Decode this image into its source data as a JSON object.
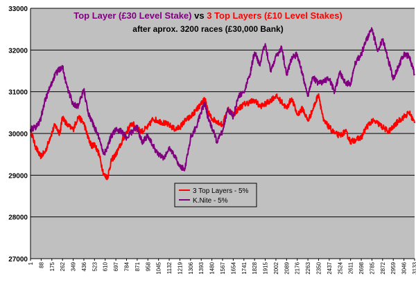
{
  "chart_data": {
    "type": "line",
    "title_parts": [
      {
        "text": "Top Layer (£30 Level Stake)",
        "color": "#800080"
      },
      {
        "text": " vs ",
        "color": "#000000"
      },
      {
        "text": "3 Top Layers (£10 Level Stakes)",
        "color": "#ff0000"
      }
    ],
    "subtitle": "after aprox. 3200 races  (£30,000 Bank)",
    "xlabel": "",
    "ylabel": "",
    "ylim": [
      27000,
      33000
    ],
    "yticks": [
      27000,
      28000,
      29000,
      30000,
      31000,
      32000,
      33000
    ],
    "xlim": [
      1,
      3133
    ],
    "xticks": [
      1,
      88,
      175,
      262,
      349,
      436,
      523,
      610,
      697,
      784,
      871,
      958,
      1045,
      1132,
      1219,
      1306,
      1393,
      1480,
      1567,
      1654,
      1741,
      1828,
      1915,
      2002,
      2089,
      2176,
      2263,
      2350,
      2437,
      2524,
      2611,
      2698,
      2785,
      2872,
      2959,
      3046,
      3133
    ],
    "grid": true,
    "plot_background": "#c0c0c0",
    "legend_position": "inside-middle-left",
    "series": [
      {
        "name": "3 Top Layers - 5%",
        "color": "#ff0000",
        "x": [
          1,
          40,
          80,
          120,
          160,
          200,
          240,
          262,
          300,
          349,
          390,
          436,
          470,
          500,
          523,
          560,
          600,
          630,
          660,
          697,
          740,
          784,
          830,
          871,
          910,
          958,
          1000,
          1045,
          1090,
          1132,
          1180,
          1219,
          1260,
          1306,
          1350,
          1393,
          1420,
          1450,
          1480,
          1520,
          1567,
          1610,
          1654,
          1700,
          1741,
          1790,
          1828,
          1870,
          1915,
          1960,
          2002,
          2050,
          2089,
          2130,
          2176,
          2220,
          2263,
          2300,
          2350,
          2390,
          2437,
          2480,
          2524,
          2570,
          2611,
          2650,
          2698,
          2740,
          2785,
          2830,
          2872,
          2920,
          2959,
          3000,
          3046,
          3090,
          3133
        ],
        "y": [
          30100,
          29700,
          29450,
          29550,
          29900,
          30200,
          30000,
          30400,
          30200,
          30100,
          30400,
          30250,
          29900,
          29700,
          29750,
          29500,
          29000,
          28950,
          29350,
          29500,
          29750,
          30050,
          30250,
          30100,
          30050,
          30150,
          30350,
          30300,
          30250,
          30200,
          30100,
          30150,
          30300,
          30400,
          30550,
          30700,
          30850,
          30500,
          30350,
          30300,
          30200,
          30600,
          30450,
          30600,
          30700,
          30750,
          30800,
          30650,
          30700,
          30800,
          30900,
          30750,
          30600,
          30850,
          30450,
          30600,
          30300,
          30550,
          30950,
          30300,
          30150,
          30000,
          29950,
          30050,
          29800,
          29850,
          29900,
          30150,
          30300,
          30250,
          30150,
          30050,
          30150,
          30300,
          30400,
          30500,
          30250
        ]
      },
      {
        "name": "K.Nite - 5%",
        "color": "#800080",
        "x": [
          1,
          40,
          80,
          120,
          160,
          200,
          240,
          262,
          300,
          349,
          390,
          436,
          470,
          500,
          523,
          560,
          600,
          630,
          660,
          697,
          740,
          784,
          830,
          871,
          910,
          958,
          1000,
          1045,
          1090,
          1132,
          1180,
          1219,
          1260,
          1306,
          1350,
          1393,
          1420,
          1450,
          1480,
          1520,
          1567,
          1610,
          1654,
          1700,
          1741,
          1790,
          1828,
          1870,
          1915,
          1960,
          2002,
          2050,
          2089,
          2130,
          2176,
          2220,
          2263,
          2300,
          2350,
          2390,
          2437,
          2480,
          2524,
          2570,
          2611,
          2650,
          2698,
          2740,
          2785,
          2830,
          2872,
          2920,
          2959,
          3000,
          3046,
          3090,
          3133
        ],
        "y": [
          30100,
          30150,
          30300,
          30800,
          31100,
          31400,
          31550,
          31600,
          31100,
          30700,
          30650,
          31050,
          30500,
          30300,
          30150,
          29900,
          29500,
          29700,
          29950,
          30100,
          30050,
          29900,
          30050,
          30150,
          29800,
          29950,
          29700,
          29500,
          29400,
          29650,
          29450,
          29200,
          29150,
          29900,
          30150,
          30500,
          30750,
          30350,
          30150,
          29800,
          30050,
          30600,
          30400,
          30900,
          31000,
          31400,
          31950,
          31650,
          32150,
          31500,
          31850,
          32050,
          31400,
          31800,
          31900,
          31400,
          30900,
          31350,
          31200,
          31250,
          31300,
          31000,
          31450,
          31200,
          31200,
          31700,
          31900,
          32250,
          32500,
          32000,
          32250,
          31750,
          31300,
          31600,
          31900,
          31850,
          31400
        ]
      }
    ]
  }
}
